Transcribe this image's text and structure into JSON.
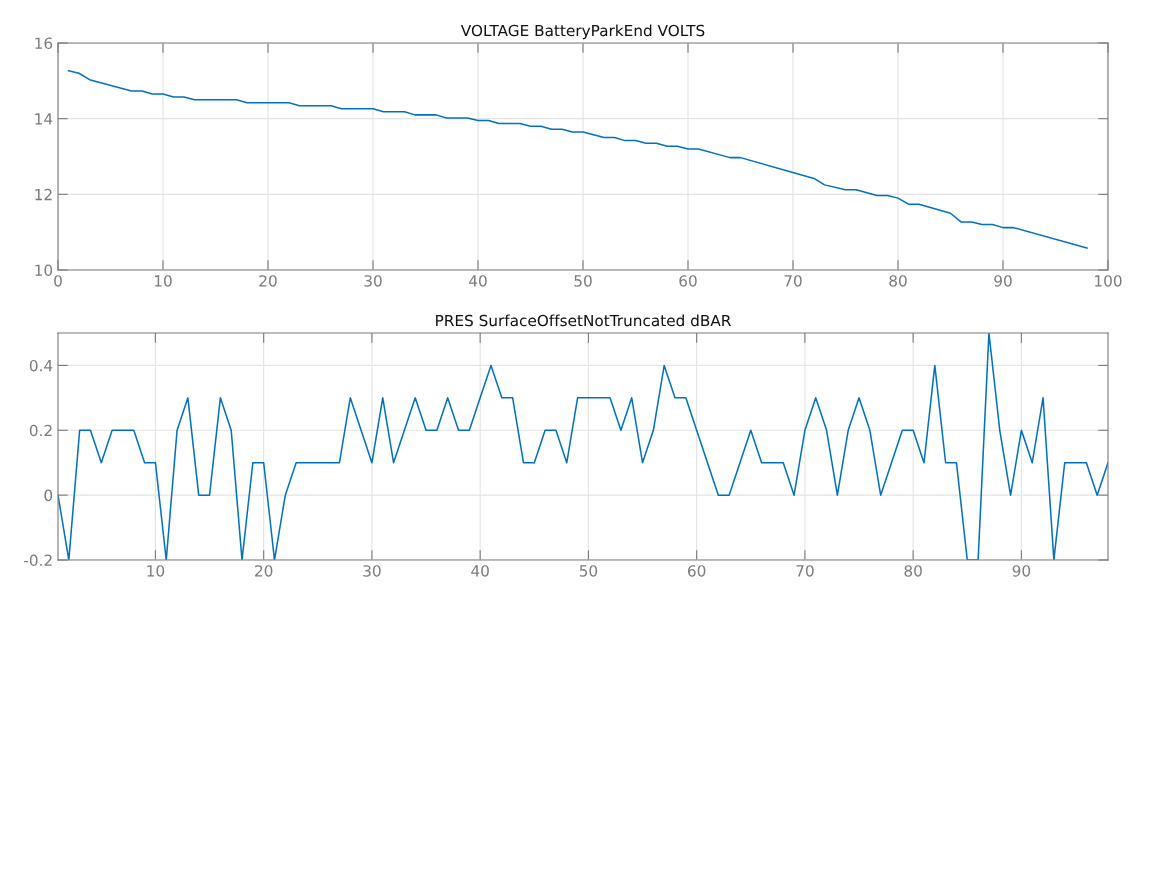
{
  "chart_data": [
    {
      "type": "line",
      "title": "VOLTAGE BatteryParkEnd VOLTS",
      "xlim": [
        0,
        100
      ],
      "xticks": [
        0,
        10,
        20,
        30,
        40,
        50,
        60,
        70,
        80,
        90,
        100
      ],
      "ylim": [
        10,
        16
      ],
      "yticks": [
        10,
        12,
        14,
        16
      ],
      "grid": true,
      "marker": "none",
      "line_style": "solid",
      "series": [
        {
          "color": "#0072bd",
          "x": [
            1,
            2,
            3,
            7,
            8,
            9,
            10,
            11,
            12,
            13,
            17,
            18,
            22,
            23,
            26,
            27,
            30,
            31,
            33,
            34,
            36,
            37,
            39,
            40,
            41,
            42,
            44,
            45,
            46,
            47,
            48,
            49,
            50,
            52,
            53,
            54,
            55,
            56,
            57,
            58,
            59,
            60,
            61,
            64,
            65,
            72,
            73,
            75,
            76,
            78,
            79,
            80,
            81,
            82,
            85,
            86,
            87,
            88,
            89,
            90,
            91,
            98
          ],
          "values": [
            15.27,
            15.2,
            15.03,
            14.73,
            14.73,
            14.65,
            14.65,
            14.57,
            14.57,
            14.5,
            14.5,
            14.42,
            14.42,
            14.34,
            14.34,
            14.26,
            14.26,
            14.18,
            14.18,
            14.1,
            14.1,
            14.02,
            14.02,
            13.95,
            13.95,
            13.87,
            13.87,
            13.8,
            13.8,
            13.72,
            13.72,
            13.65,
            13.65,
            13.5,
            13.5,
            13.42,
            13.42,
            13.35,
            13.35,
            13.27,
            13.27,
            13.2,
            13.2,
            12.97,
            12.97,
            12.42,
            12.25,
            12.12,
            12.12,
            11.97,
            11.97,
            11.9,
            11.74,
            11.74,
            11.5,
            11.27,
            11.27,
            11.2,
            11.2,
            11.12,
            11.12,
            10.58
          ]
        }
      ]
    },
    {
      "type": "line",
      "title": "PRES SurfaceOffsetNotTruncated dBAR",
      "xlim": [
        1,
        98
      ],
      "xticks": [
        10,
        20,
        30,
        40,
        50,
        60,
        70,
        80,
        90
      ],
      "ylim": [
        -0.2,
        0.5
      ],
      "yticks": [
        {
          "value": -0.2,
          "label": "-0.2"
        },
        0,
        0.2,
        0.4
      ],
      "grid": true,
      "marker": "none",
      "line_style": "solid",
      "series": [
        {
          "color": "#0072bd",
          "x": [
            1,
            2,
            3,
            4,
            5,
            6,
            7,
            8,
            9,
            10,
            11,
            12,
            13,
            14,
            15,
            16,
            17,
            18,
            19,
            20,
            21,
            22,
            23,
            24,
            25,
            26,
            27,
            28,
            29,
            30,
            31,
            32,
            33,
            34,
            35,
            36,
            37,
            38,
            39,
            40,
            41,
            42,
            43,
            44,
            45,
            46,
            47,
            48,
            49,
            50,
            51,
            52,
            53,
            54,
            55,
            56,
            57,
            58,
            59,
            60,
            61,
            62,
            63,
            64,
            65,
            66,
            67,
            68,
            69,
            70,
            71,
            72,
            73,
            74,
            75,
            76,
            77,
            78,
            79,
            80,
            81,
            82,
            83,
            84,
            85,
            86,
            87,
            88,
            89,
            90,
            91,
            92,
            93,
            94,
            95,
            96,
            97,
            98
          ],
          "values": [
            0,
            -0.2,
            0.2,
            0.2,
            0.1,
            0.2,
            0.2,
            0.2,
            0.1,
            0.1,
            -0.2,
            0.2,
            0.3,
            0,
            0,
            0.3,
            0.2,
            -0.2,
            0.1,
            0.1,
            -0.2,
            0,
            0.1,
            0.1,
            0.1,
            0.1,
            0.1,
            0.3,
            0.2,
            0.1,
            0.3,
            0.1,
            0.2,
            0.3,
            0.2,
            0.2,
            0.3,
            0.2,
            0.2,
            0.3,
            0.4,
            0.3,
            0.3,
            0.1,
            0.1,
            0.2,
            0.2,
            0.1,
            0.3,
            0.3,
            0.3,
            0.3,
            0.2,
            0.3,
            0.1,
            0.2,
            0.4,
            0.3,
            0.3,
            0.2,
            0.1,
            0,
            0,
            0.1,
            0.2,
            0.1,
            0.1,
            0.1,
            0,
            0.2,
            0.3,
            0.2,
            0,
            0.2,
            0.3,
            0.2,
            0,
            0.1,
            0.2,
            0.2,
            0.1,
            0.4,
            0.1,
            0.1,
            -0.2,
            -0.2,
            0.5,
            0.2,
            0,
            0.2,
            0.1,
            0.3,
            -0.2,
            0.1,
            0.1,
            0.1,
            0,
            0.1
          ]
        }
      ]
    }
  ]
}
